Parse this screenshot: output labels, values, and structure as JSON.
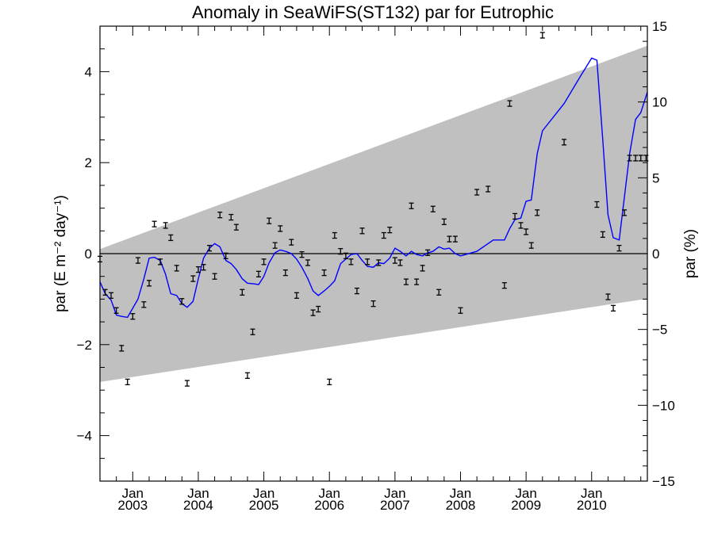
{
  "chart_data": {
    "type": "line",
    "title": "Anomaly in SeaWiFS(ST132) par for Eutrophic",
    "ylabel_left": "par (E m⁻² day⁻¹)",
    "ylabel_right": "par (%)",
    "ylim_left": [
      -5,
      5
    ],
    "ylim_right": [
      -15,
      15
    ],
    "xlim": [
      2002.5,
      2010.85
    ],
    "yticks_left": [
      {
        "v": 4,
        "label": "4"
      },
      {
        "v": 2,
        "label": "2"
      },
      {
        "v": 0,
        "label": "0"
      },
      {
        "v": -2,
        "label": "−2"
      },
      {
        "v": -4,
        "label": "−4"
      }
    ],
    "yticks_right": [
      {
        "v": 15,
        "label": "15"
      },
      {
        "v": 10,
        "label": "10"
      },
      {
        "v": 5,
        "label": "5"
      },
      {
        "v": 0,
        "label": "0"
      },
      {
        "v": -5,
        "label": "−5"
      },
      {
        "v": -10,
        "label": "−10"
      },
      {
        "v": -15,
        "label": "−15"
      }
    ],
    "xticks": [
      {
        "v": 2003,
        "month": "Jan",
        "year": "2003"
      },
      {
        "v": 2004,
        "month": "Jan",
        "year": "2004"
      },
      {
        "v": 2005,
        "month": "Jan",
        "year": "2005"
      },
      {
        "v": 2006,
        "month": "Jan",
        "year": "2006"
      },
      {
        "v": 2007,
        "month": "Jan",
        "year": "2007"
      },
      {
        "v": 2008,
        "month": "Jan",
        "year": "2008"
      },
      {
        "v": 2009,
        "month": "Jan",
        "year": "2009"
      },
      {
        "v": 2010,
        "month": "Jan",
        "year": "2010"
      }
    ],
    "zero_line": 0,
    "band": {
      "x": [
        2002.5,
        2010.85
      ],
      "upper": [
        0.1,
        4.57
      ],
      "lower": [
        -2.82,
        -0.99
      ],
      "color": "#c0c0c0"
    },
    "colors": {
      "smoothed_line": "#0000ff",
      "points": "#000000",
      "zero_line": "#000000"
    },
    "smoothed_line": {
      "x": [
        2002.5,
        2002.58,
        2002.67,
        2002.75,
        2002.83,
        2002.92,
        2003.0,
        2003.08,
        2003.17,
        2003.25,
        2003.33,
        2003.42,
        2003.5,
        2003.58,
        2003.67,
        2003.75,
        2003.83,
        2003.92,
        2004.0,
        2004.08,
        2004.17,
        2004.25,
        2004.33,
        2004.42,
        2004.5,
        2004.58,
        2004.67,
        2004.75,
        2004.83,
        2004.92,
        2005.0,
        2005.08,
        2005.17,
        2005.25,
        2005.33,
        2005.42,
        2005.5,
        2005.58,
        2005.67,
        2005.75,
        2005.83,
        2005.92,
        2006.0,
        2006.08,
        2006.17,
        2006.25,
        2006.33,
        2006.42,
        2006.5,
        2006.58,
        2006.67,
        2006.75,
        2006.83,
        2006.92,
        2007.0,
        2007.08,
        2007.17,
        2007.25,
        2007.33,
        2007.42,
        2007.5,
        2007.58,
        2007.67,
        2007.75,
        2007.83,
        2007.92,
        2008.0,
        2008.25,
        2008.5,
        2008.67,
        2008.75,
        2008.83,
        2008.92,
        2009.0,
        2009.08,
        2009.17,
        2009.25,
        2009.58,
        2009.83,
        2010.0,
        2010.08,
        2010.17,
        2010.25,
        2010.33,
        2010.42,
        2010.5,
        2010.58,
        2010.67,
        2010.75,
        2010.85
      ],
      "y": [
        -0.62,
        -0.88,
        -1.02,
        -1.35,
        -1.38,
        -1.4,
        -1.2,
        -1.0,
        -0.55,
        -0.1,
        -0.08,
        -0.15,
        -0.45,
        -0.88,
        -0.92,
        -1.1,
        -1.18,
        -1.05,
        -0.55,
        -0.1,
        0.12,
        0.22,
        0.15,
        -0.15,
        -0.22,
        -0.35,
        -0.55,
        -0.65,
        -0.66,
        -0.68,
        -0.5,
        -0.2,
        0.02,
        0.08,
        0.05,
        0.0,
        -0.12,
        -0.3,
        -0.55,
        -0.82,
        -0.92,
        -0.82,
        -0.72,
        -0.6,
        -0.22,
        -0.12,
        -0.02,
        0.0,
        -0.15,
        -0.28,
        -0.3,
        -0.2,
        -0.22,
        -0.1,
        0.12,
        0.05,
        -0.05,
        0.05,
        -0.02,
        -0.05,
        0.02,
        0.05,
        0.15,
        0.1,
        0.12,
        0.0,
        -0.05,
        0.05,
        0.3,
        0.3,
        0.55,
        0.75,
        0.78,
        1.15,
        1.18,
        2.2,
        2.7,
        3.3,
        3.9,
        4.3,
        4.25,
        2.5,
        0.85,
        0.35,
        0.3,
        1.25,
        2.2,
        2.95,
        3.1,
        3.55
      ]
    },
    "points": {
      "x": [
        2002.5,
        2002.58,
        2002.67,
        2002.75,
        2002.83,
        2002.92,
        2003.0,
        2003.08,
        2003.17,
        2003.25,
        2003.33,
        2003.42,
        2003.5,
        2003.58,
        2003.67,
        2003.75,
        2003.83,
        2003.92,
        2004.0,
        2004.08,
        2004.17,
        2004.25,
        2004.33,
        2004.42,
        2004.5,
        2004.58,
        2004.67,
        2004.75,
        2004.83,
        2004.92,
        2005.0,
        2005.08,
        2005.17,
        2005.25,
        2005.33,
        2005.42,
        2005.5,
        2005.58,
        2005.67,
        2005.75,
        2005.83,
        2005.92,
        2006.0,
        2006.08,
        2006.17,
        2006.25,
        2006.33,
        2006.42,
        2006.5,
        2006.58,
        2006.67,
        2006.75,
        2006.83,
        2006.92,
        2007.0,
        2007.08,
        2007.17,
        2007.25,
        2007.33,
        2007.42,
        2007.5,
        2007.58,
        2007.67,
        2007.75,
        2007.83,
        2007.92,
        2008.0,
        2008.25,
        2008.42,
        2008.67,
        2008.75,
        2008.83,
        2008.92,
        2009.0,
        2009.08,
        2009.17,
        2009.25,
        2009.58,
        2010.08,
        2010.17,
        2010.25,
        2010.33,
        2010.42,
        2010.5,
        2010.58,
        2010.67,
        2010.75,
        2010.83
      ],
      "y": [
        -0.12,
        -0.85,
        -0.92,
        -1.25,
        -2.08,
        -2.82,
        -1.38,
        -0.15,
        -1.12,
        -0.65,
        0.65,
        -0.18,
        0.62,
        0.35,
        -0.32,
        -1.05,
        -2.85,
        -0.55,
        -0.35,
        -0.3,
        0.12,
        -0.5,
        0.85,
        -0.05,
        0.8,
        0.58,
        -0.85,
        -2.68,
        -1.72,
        -0.45,
        -0.18,
        0.72,
        0.18,
        0.55,
        -0.42,
        0.25,
        -0.92,
        -0.02,
        -0.2,
        -1.3,
        -1.22,
        -0.42,
        -2.82,
        0.4,
        0.05,
        -0.05,
        -0.18,
        -0.82,
        0.5,
        -0.18,
        -1.1,
        -0.2,
        0.4,
        0.52,
        -0.15,
        -0.2,
        -0.62,
        1.05,
        -0.62,
        -0.32,
        0.02,
        0.98,
        -0.85,
        0.7,
        0.32,
        0.32,
        -1.25,
        1.35,
        1.42,
        -0.7,
        3.3,
        0.82,
        0.62,
        0.48,
        0.18,
        0.9,
        4.8,
        2.45,
        1.08,
        0.42,
        -0.95,
        -1.2,
        0.12,
        0.9,
        2.1,
        2.1,
        2.1,
        2.1
      ]
    },
    "grid": false
  }
}
